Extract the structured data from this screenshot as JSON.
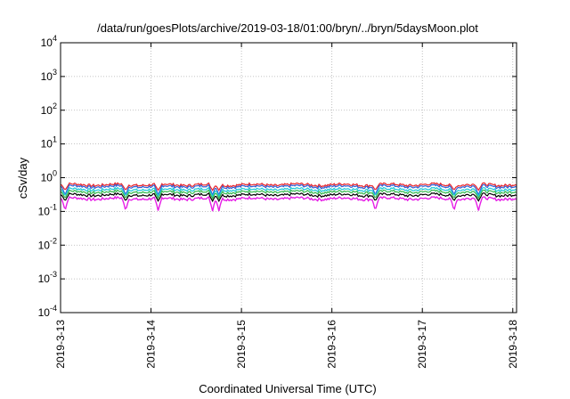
{
  "chart_data": {
    "type": "line",
    "title": "/data/run/goesPlots/archive/2019-03-18/01:00/bryn/../bryn/5daysMoon.plot",
    "xlabel": "Coordinated Universal Time (UTC)",
    "ylabel": "cSv/day",
    "y_scale": "log",
    "ylim": [
      0.0001,
      10000
    ],
    "xlim": [
      "2019-03-13",
      "2019-03-18 01:00"
    ],
    "grid": true,
    "x_ticks": [
      "2019-3-13",
      "2019-3-14",
      "2019-3-15",
      "2019-3-16",
      "2019-3-17",
      "2019-3-18"
    ],
    "y_ticks": [
      {
        "base": "10",
        "exp": "-4"
      },
      {
        "base": "10",
        "exp": "-3"
      },
      {
        "base": "10",
        "exp": "-2"
      },
      {
        "base": "10",
        "exp": "-1"
      },
      {
        "base": "10",
        "exp": "0"
      },
      {
        "base": "10",
        "exp": "1"
      },
      {
        "base": "10",
        "exp": "2"
      },
      {
        "base": "10",
        "exp": "3"
      },
      {
        "base": "10",
        "exp": "4"
      }
    ],
    "series": [
      {
        "color": "#e8232a",
        "typical": 0.62,
        "dip": 0.42
      },
      {
        "color": "#2f5fd6",
        "typical": 0.55,
        "dip": 0.3
      },
      {
        "color": "#19c7d6",
        "typical": 0.45,
        "dip": 0.28
      },
      {
        "color": "#2fb84a",
        "typical": 0.38,
        "dip": 0.24
      },
      {
        "color": "#000000",
        "typical": 0.31,
        "dip": 0.2
      },
      {
        "color": "#e61ee6",
        "typical": 0.24,
        "dip": 0.1
      }
    ],
    "dip_days": [
      13.05,
      13.72,
      14.08,
      14.68,
      14.75,
      16.48,
      17.35,
      17.62
    ]
  }
}
